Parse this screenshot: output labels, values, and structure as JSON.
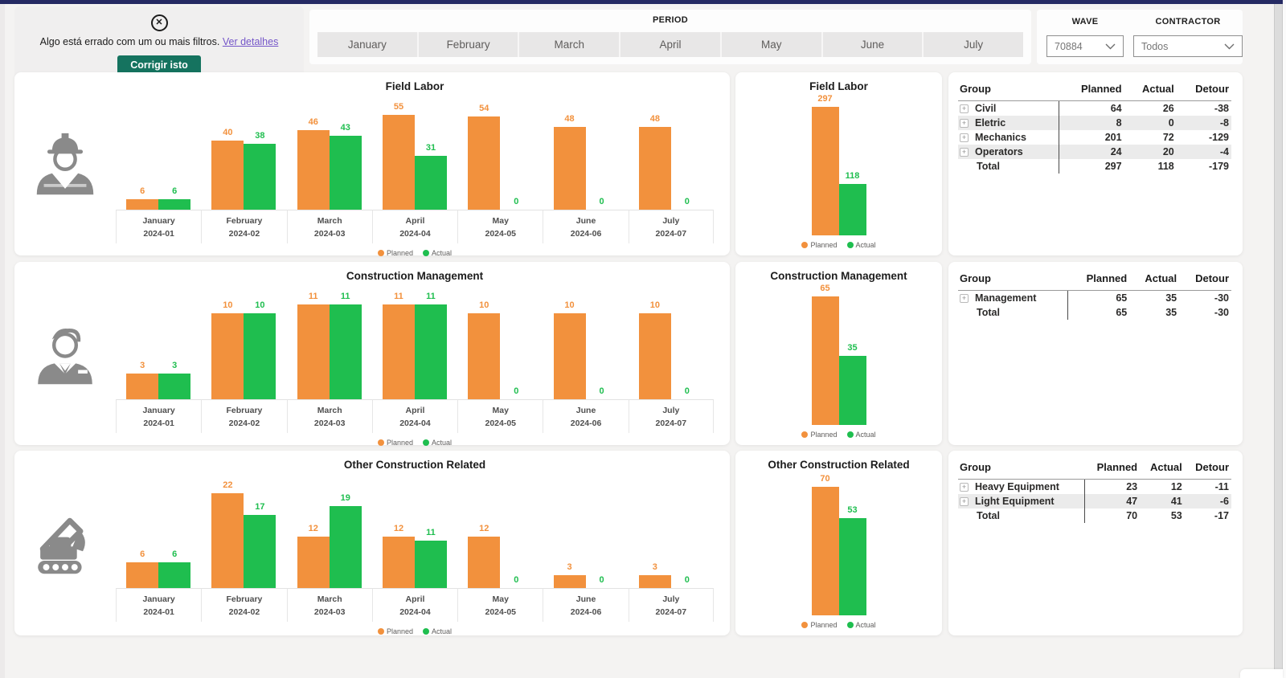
{
  "theme": {
    "planned_color": "#F2913D",
    "actual_color": "#1FBE4F",
    "button_teal": "#15735F",
    "link_purple": "#7455C8",
    "topbar_navy": "#252A63",
    "icon_gray": "#8A8A8A"
  },
  "error_panel": {
    "icon": "circle-x-icon",
    "message": "Algo está errado com um ou mais filtros.",
    "link_label": "Ver detalhes",
    "button_label": "Corrigir isto"
  },
  "filters": {
    "period": {
      "label": "PERIOD",
      "months": [
        "January",
        "February",
        "March",
        "April",
        "May",
        "June",
        "July"
      ]
    },
    "wave": {
      "label": "WAVE",
      "value": "70884"
    },
    "contractor": {
      "label": "CONTRACTOR",
      "value": "Todos"
    }
  },
  "legend": {
    "planned": "Planned",
    "actual": "Actual"
  },
  "calendar": [
    {
      "month": "January",
      "code": "2024-01"
    },
    {
      "month": "February",
      "code": "2024-02"
    },
    {
      "month": "March",
      "code": "2024-03"
    },
    {
      "month": "April",
      "code": "2024-04"
    },
    {
      "month": "May",
      "code": "2024-05"
    },
    {
      "month": "June",
      "code": "2024-06"
    },
    {
      "month": "July",
      "code": "2024-07"
    }
  ],
  "sections": [
    {
      "title": "Field Labor",
      "icon": "construction-worker-icon",
      "monthly": {
        "planned": [
          6,
          40,
          46,
          55,
          54,
          48,
          48
        ],
        "actual": [
          6,
          38,
          43,
          31,
          0,
          0,
          0
        ]
      },
      "summary": {
        "planned": 297,
        "actual": 118
      },
      "table": {
        "columns": [
          "Group",
          "Planned",
          "Actual",
          "Detour"
        ],
        "rows": [
          {
            "group": "Civil",
            "planned": 64,
            "actual": 26,
            "detour": -38,
            "expandable": true,
            "shaded": false
          },
          {
            "group": "Eletric",
            "planned": 8,
            "actual": 0,
            "detour": -8,
            "expandable": true,
            "shaded": true
          },
          {
            "group": "Mechanics",
            "planned": 201,
            "actual": 72,
            "detour": -129,
            "expandable": true,
            "shaded": false
          },
          {
            "group": "Operators",
            "planned": 24,
            "actual": 20,
            "detour": -4,
            "expandable": true,
            "shaded": true
          },
          {
            "group": "Total",
            "planned": 297,
            "actual": 118,
            "detour": -179,
            "expandable": false,
            "shaded": false
          }
        ]
      }
    },
    {
      "title": "Construction Management",
      "icon": "manager-icon",
      "monthly": {
        "planned": [
          3,
          10,
          11,
          11,
          10,
          10,
          10
        ],
        "actual": [
          3,
          10,
          11,
          11,
          0,
          0,
          0
        ]
      },
      "summary": {
        "planned": 65,
        "actual": 35
      },
      "table": {
        "columns": [
          "Group",
          "Planned",
          "Actual",
          "Detour"
        ],
        "rows": [
          {
            "group": "Management",
            "planned": 65,
            "actual": 35,
            "detour": -30,
            "expandable": true,
            "shaded": false
          },
          {
            "group": "Total",
            "planned": 65,
            "actual": 35,
            "detour": -30,
            "expandable": false,
            "shaded": false
          }
        ]
      }
    },
    {
      "title": "Other Construction Related",
      "icon": "excavator-icon",
      "monthly": {
        "planned": [
          6,
          22,
          12,
          12,
          12,
          3,
          3
        ],
        "actual": [
          6,
          17,
          19,
          11,
          0,
          0,
          0
        ]
      },
      "summary": {
        "planned": 70,
        "actual": 53
      },
      "table": {
        "columns": [
          "Group",
          "Planned",
          "Actual",
          "Detour"
        ],
        "rows": [
          {
            "group": "Heavy Equipment",
            "planned": 23,
            "actual": 12,
            "detour": -11,
            "expandable": true,
            "shaded": false
          },
          {
            "group": "Light Equipment",
            "planned": 47,
            "actual": 41,
            "detour": -6,
            "expandable": true,
            "shaded": true
          },
          {
            "group": "Total",
            "planned": 70,
            "actual": 53,
            "detour": -17,
            "expandable": false,
            "shaded": false
          }
        ]
      }
    }
  ],
  "chart_data": [
    {
      "type": "bar",
      "title": "Field Labor",
      "categories": [
        "2024-01",
        "2024-02",
        "2024-03",
        "2024-04",
        "2024-05",
        "2024-06",
        "2024-07"
      ],
      "series": [
        {
          "name": "Planned",
          "values": [
            6,
            40,
            46,
            55,
            54,
            48,
            48
          ]
        },
        {
          "name": "Actual",
          "values": [
            6,
            38,
            43,
            31,
            0,
            0,
            0
          ]
        }
      ],
      "legend_position": "bottom",
      "value_labels": true
    },
    {
      "type": "bar",
      "title": "Field Labor",
      "categories": [
        "Total"
      ],
      "series": [
        {
          "name": "Planned",
          "values": [
            297
          ]
        },
        {
          "name": "Actual",
          "values": [
            118
          ]
        }
      ],
      "legend_position": "bottom"
    },
    {
      "type": "table",
      "title": "Field Labor Groups",
      "columns": [
        "Group",
        "Planned",
        "Actual",
        "Detour"
      ],
      "rows": [
        [
          "Civil",
          64,
          26,
          -38
        ],
        [
          "Eletric",
          8,
          0,
          -8
        ],
        [
          "Mechanics",
          201,
          72,
          -129
        ],
        [
          "Operators",
          24,
          20,
          -4
        ],
        [
          "Total",
          297,
          118,
          -179
        ]
      ]
    },
    {
      "type": "bar",
      "title": "Construction Management",
      "categories": [
        "2024-01",
        "2024-02",
        "2024-03",
        "2024-04",
        "2024-05",
        "2024-06",
        "2024-07"
      ],
      "series": [
        {
          "name": "Planned",
          "values": [
            3,
            10,
            11,
            11,
            10,
            10,
            10
          ]
        },
        {
          "name": "Actual",
          "values": [
            3,
            10,
            11,
            11,
            0,
            0,
            0
          ]
        }
      ],
      "legend_position": "bottom",
      "value_labels": true
    },
    {
      "type": "bar",
      "title": "Construction Management",
      "categories": [
        "Total"
      ],
      "series": [
        {
          "name": "Planned",
          "values": [
            65
          ]
        },
        {
          "name": "Actual",
          "values": [
            35
          ]
        }
      ],
      "legend_position": "bottom"
    },
    {
      "type": "table",
      "title": "Construction Management Groups",
      "columns": [
        "Group",
        "Planned",
        "Actual",
        "Detour"
      ],
      "rows": [
        [
          "Management",
          65,
          35,
          -30
        ],
        [
          "Total",
          65,
          35,
          -30
        ]
      ]
    },
    {
      "type": "bar",
      "title": "Other Construction Related",
      "categories": [
        "2024-01",
        "2024-02",
        "2024-03",
        "2024-04",
        "2024-05",
        "2024-06",
        "2024-07"
      ],
      "series": [
        {
          "name": "Planned",
          "values": [
            6,
            22,
            12,
            12,
            12,
            3,
            3
          ]
        },
        {
          "name": "Actual",
          "values": [
            6,
            17,
            19,
            11,
            0,
            0,
            0
          ]
        }
      ],
      "legend_position": "bottom",
      "value_labels": true
    },
    {
      "type": "bar",
      "title": "Other Construction Related",
      "categories": [
        "Total"
      ],
      "series": [
        {
          "name": "Planned",
          "values": [
            70
          ]
        },
        {
          "name": "Actual",
          "values": [
            53
          ]
        }
      ],
      "legend_position": "bottom"
    },
    {
      "type": "table",
      "title": "Other Construction Related Groups",
      "columns": [
        "Group",
        "Planned",
        "Actual",
        "Detour"
      ],
      "rows": [
        [
          "Heavy Equipment",
          23,
          12,
          -11
        ],
        [
          "Light Equipment",
          47,
          41,
          -6
        ],
        [
          "Total",
          70,
          53,
          -17
        ]
      ]
    }
  ]
}
